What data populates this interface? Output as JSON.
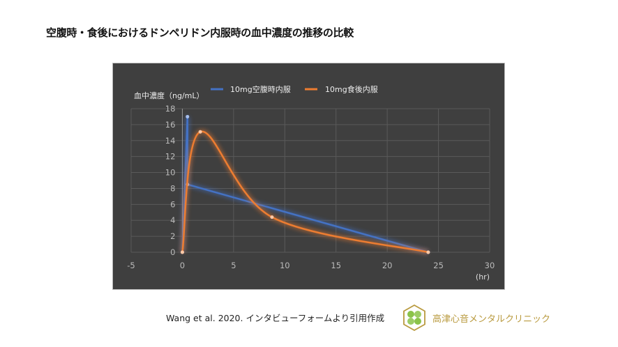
{
  "title": "空腹時・食後におけるドンペリドン内服時の血中濃度の推移の比較",
  "source": "Wang et al. 2020. インタビューフォームより引用作成",
  "clinic_name": "高津心音メンタルクリニック",
  "chart_data": {
    "type": "line",
    "title": "",
    "xlabel": "(hr)",
    "ylabel": "血中濃度（ng/mL）",
    "xlim": [
      -5,
      30
    ],
    "ylim": [
      0,
      18
    ],
    "xticks": [
      -5,
      0,
      5,
      10,
      15,
      20,
      25,
      30
    ],
    "yticks": [
      0,
      2,
      4,
      6,
      8,
      10,
      12,
      14,
      16,
      18
    ],
    "grid": true,
    "legend": "top",
    "background": "#3f3f3f",
    "series": [
      {
        "name": "10mg空腹時内服",
        "color": "#4472c4",
        "smooth": false,
        "points": [
          [
            0,
            0
          ],
          [
            0.5,
            17
          ],
          [
            0.5,
            8.5
          ],
          [
            24,
            0
          ]
        ]
      },
      {
        "name": "10mg食後内服",
        "color": "#ed7d31",
        "smooth": true,
        "points": [
          [
            0,
            0
          ],
          [
            1.75,
            15.1
          ],
          [
            8.75,
            4.4
          ],
          [
            24,
            0
          ]
        ]
      }
    ]
  }
}
